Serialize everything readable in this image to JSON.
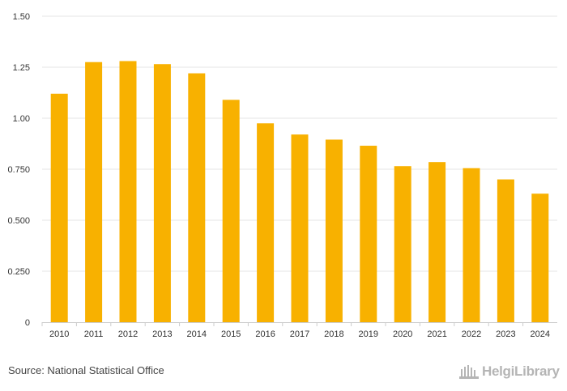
{
  "chart_data": {
    "type": "bar",
    "categories": [
      "2010",
      "2011",
      "2012",
      "2013",
      "2014",
      "2015",
      "2016",
      "2017",
      "2018",
      "2019",
      "2020",
      "2021",
      "2022",
      "2023",
      "2024"
    ],
    "values": [
      1.12,
      1.275,
      1.28,
      1.265,
      1.22,
      1.09,
      0.975,
      0.92,
      0.895,
      0.865,
      0.765,
      0.785,
      0.755,
      0.7,
      0.63
    ],
    "ylim": [
      0,
      1.5
    ],
    "yticks": [
      0,
      0.25,
      0.5,
      0.75,
      1.0,
      1.25,
      1.5
    ],
    "ytick_labels": [
      "0",
      "0.250",
      "0.500",
      "0.750",
      "1.00",
      "1.25",
      "1.50"
    ],
    "title": "",
    "xlabel": "",
    "ylabel": "",
    "grid": true,
    "bar_color": "#f8b100"
  },
  "footer": {
    "source": "Source: National Statistical Office",
    "logo_text": "HelgiLibrary"
  }
}
